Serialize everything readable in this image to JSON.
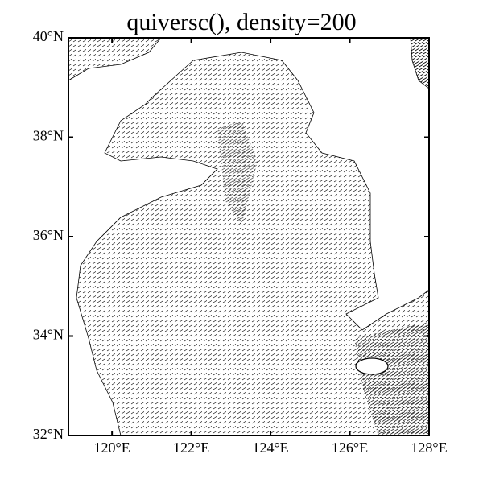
{
  "chart_data": {
    "type": "map",
    "title": "quiversc(), density=200",
    "xlim": [
      118.9,
      128
    ],
    "ylim": [
      32,
      40
    ],
    "xticks": [
      {
        "value": 120,
        "label": "120°E"
      },
      {
        "value": 122,
        "label": "122°E"
      },
      {
        "value": 124,
        "label": "124°E"
      },
      {
        "value": 126,
        "label": "126°E"
      },
      {
        "value": 128,
        "label": "128°E"
      }
    ],
    "yticks": [
      {
        "value": 32,
        "label": "32°N"
      },
      {
        "value": 34,
        "label": "34°N"
      },
      {
        "value": 36,
        "label": "36°N"
      },
      {
        "value": 38,
        "label": "38°N"
      },
      {
        "value": 40,
        "label": "40°N"
      }
    ]
  }
}
